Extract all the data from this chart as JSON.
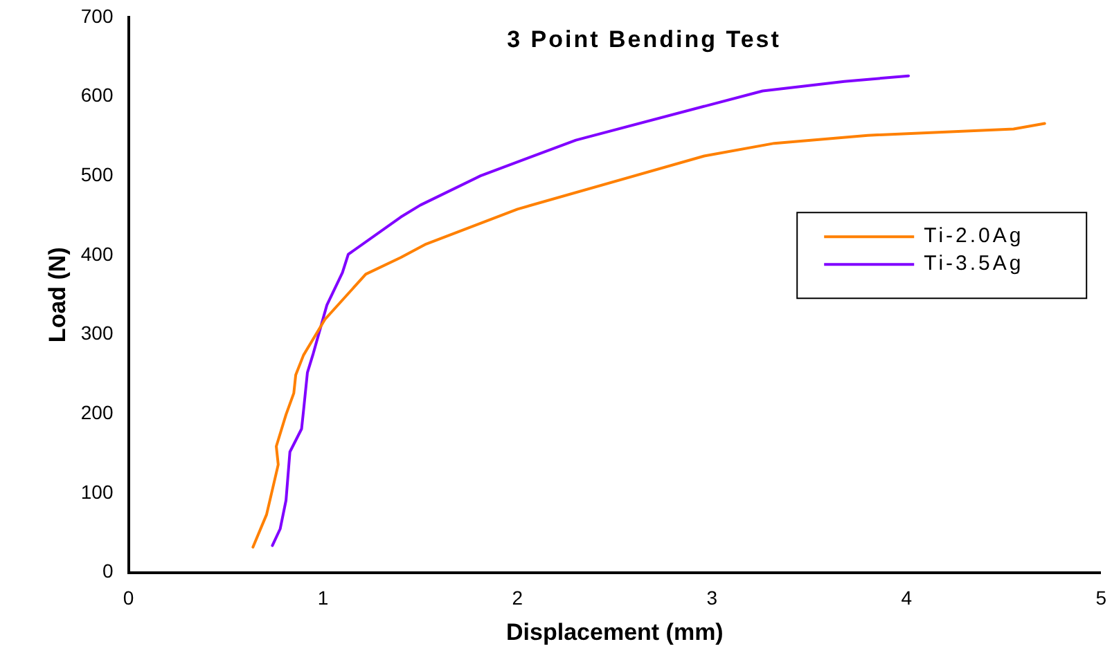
{
  "chart_data": {
    "type": "line",
    "title": "3 Point Bending Test",
    "xlabel": "Displacement (mm)",
    "ylabel": "Load (N)",
    "xlim": [
      0,
      5
    ],
    "xticks": [
      0,
      1,
      2,
      3,
      4,
      5
    ],
    "ylim": [
      0,
      700
    ],
    "yticks": [
      0,
      100,
      200,
      300,
      400,
      500,
      600,
      700
    ],
    "grid": false,
    "legend": "right",
    "marker": "none",
    "line_style": "solid",
    "series": [
      {
        "name": "Ti-2.0Ag",
        "color": "#ff8000",
        "x": [
          0.64,
          0.71,
          0.77,
          0.76,
          0.81,
          0.85,
          0.86,
          0.9,
          1.01,
          1.22,
          1.4,
          1.53,
          2.0,
          2.96,
          3.32,
          3.8,
          4.55,
          4.71
        ],
        "values": [
          32,
          73,
          136,
          159,
          199,
          226,
          249,
          274,
          319,
          376,
          397,
          414,
          458,
          525,
          541,
          551,
          559,
          566
        ]
      },
      {
        "name": "Ti-3.5Ag",
        "color": "#8000ff",
        "x": [
          0.74,
          0.78,
          0.81,
          0.83,
          0.89,
          0.9,
          0.92,
          0.95,
          1.02,
          1.1,
          1.13,
          1.4,
          1.5,
          1.81,
          2.3,
          3.26,
          3.68,
          4.01
        ],
        "values": [
          34,
          55,
          91,
          152,
          181,
          204,
          252,
          276,
          337,
          378,
          401,
          448,
          463,
          500,
          545,
          607,
          619,
          626
        ]
      }
    ]
  }
}
